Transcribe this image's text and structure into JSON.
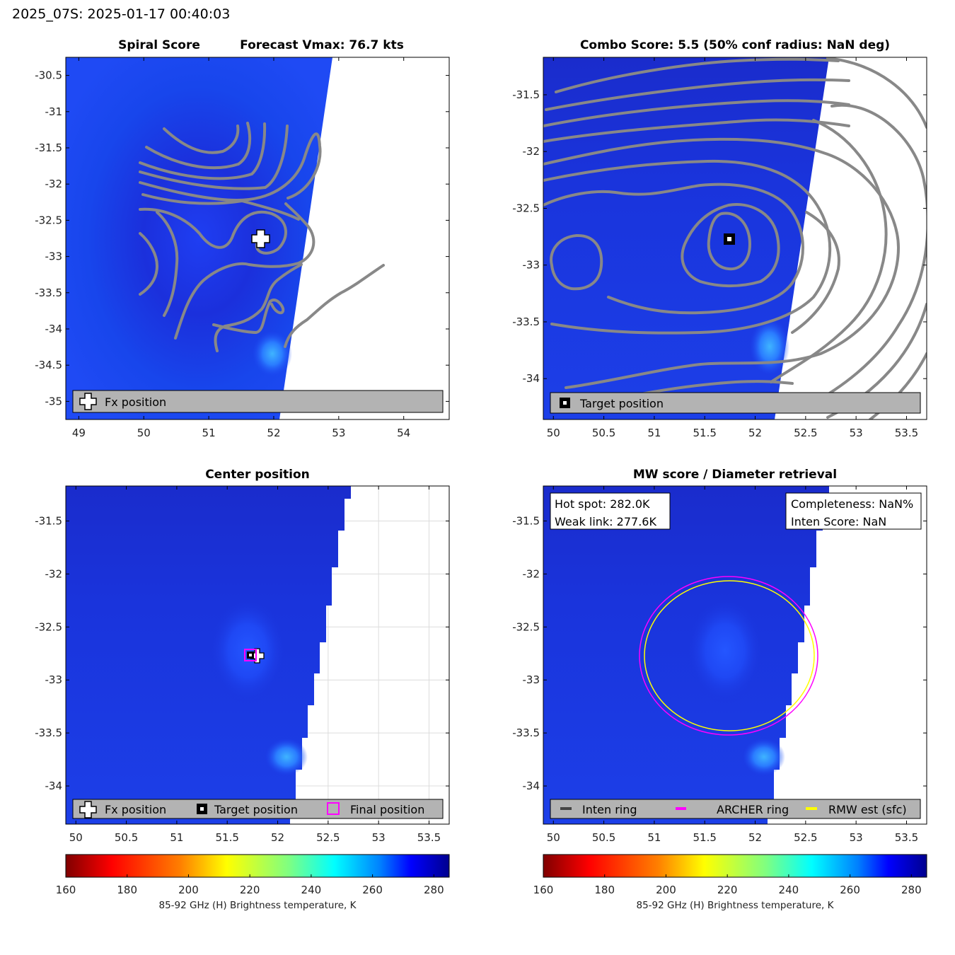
{
  "header": {
    "title": "2025_07S: 2025-01-17 00:40:03"
  },
  "colors": {
    "contour": "#888888",
    "archer_ring": "#ff00ff",
    "rmw_ring": "#ffff00",
    "legend_bg": "#b3b3b3",
    "tb_field": "#1a3cf0"
  },
  "panels": {
    "spiral": {
      "title_left": "Spiral Score",
      "title_right": "Forecast Vmax: 76.7 kts",
      "legend": [
        "Fx position"
      ]
    },
    "combo": {
      "title": "Combo Score: 5.5  (50% conf radius: NaN deg)",
      "legend": [
        "Target position"
      ]
    },
    "center": {
      "title": "Center position",
      "legend": [
        "Fx position",
        "Target position",
        "Final position"
      ]
    },
    "mw": {
      "title": "MW score / Diameter retrieval",
      "info_left": [
        "Hot spot: 282.0K",
        "Weak link: 277.6K"
      ],
      "info_right": [
        "Completeness: NaN%",
        "Inten Score: NaN"
      ],
      "legend": [
        "Inten ring",
        "ARCHER ring",
        "RMW est (sfc)"
      ]
    }
  },
  "colorbar": {
    "label": "85-92 GHz (H) Brightness temperature, K",
    "ticks": [
      "160",
      "180",
      "200",
      "220",
      "240",
      "260",
      "280"
    ]
  },
  "chart_data": [
    {
      "type": "heatmap",
      "title": "Spiral Score",
      "xlim": [
        48.8,
        54.7
      ],
      "ylim": [
        -35.25,
        -30.25
      ],
      "xticks": [
        49,
        50,
        51,
        52,
        53,
        54
      ],
      "xtick_labels": [
        "49",
        "50",
        "51",
        "52",
        "53",
        "54"
      ],
      "yticks": [
        -30.5,
        -31,
        -31.5,
        -32,
        -32.5,
        -33,
        -33.5,
        -34,
        -34.5,
        -35
      ],
      "ytick_labels": [
        "-30.5",
        "-31",
        "-31.5",
        "-32",
        "-32.5",
        "-33",
        "-33.5",
        "-34",
        "-34.5",
        "-35"
      ],
      "fx_position": [
        51.8,
        -32.77
      ],
      "forecast_vmax_kts": 76.7
    },
    {
      "type": "heatmap",
      "title": "Combo Score: 5.5  (50% conf radius: NaN deg)",
      "xlim": [
        49.9,
        53.7
      ],
      "ylim": [
        -34.36,
        -31.17
      ],
      "xticks": [
        50,
        50.5,
        51,
        51.5,
        52,
        52.5,
        53,
        53.5
      ],
      "xtick_labels": [
        "50",
        "50.5",
        "51",
        "51.5",
        "52",
        "52.5",
        "53",
        "53.5"
      ],
      "yticks": [
        -31.5,
        -32,
        -32.5,
        -33,
        -33.5,
        -34
      ],
      "ytick_labels": [
        "-31.5",
        "-32",
        "-32.5",
        "-33",
        "-33.5",
        "-34"
      ],
      "target_position": [
        51.75,
        -32.77
      ],
      "combo_score": 5.5
    },
    {
      "type": "heatmap",
      "title": "Center position",
      "xlim": [
        49.9,
        53.7
      ],
      "ylim": [
        -34.36,
        -31.17
      ],
      "xticks": [
        50,
        50.5,
        51,
        51.5,
        52,
        52.5,
        53,
        53.5
      ],
      "xtick_labels": [
        "50",
        "50.5",
        "51",
        "51.5",
        "52",
        "52.5",
        "53",
        "53.5"
      ],
      "yticks": [
        -31.5,
        -32,
        -32.5,
        -33,
        -33.5,
        -34
      ],
      "ytick_labels": [
        "-31.5",
        "-32",
        "-32.5",
        "-33",
        "-33.5",
        "-34"
      ],
      "fx_position": [
        51.8,
        -32.77
      ],
      "target_position": [
        51.75,
        -32.77
      ],
      "final_position": [
        51.75,
        -32.77
      ]
    },
    {
      "type": "heatmap",
      "title": "MW score / Diameter retrieval",
      "xlim": [
        49.9,
        53.7
      ],
      "ylim": [
        -34.36,
        -31.17
      ],
      "xticks": [
        50,
        50.5,
        51,
        51.5,
        52,
        52.5,
        53,
        53.5
      ],
      "xtick_labels": [
        "50",
        "50.5",
        "51",
        "51.5",
        "52",
        "52.5",
        "53",
        "53.5"
      ],
      "yticks": [
        -31.5,
        -32,
        -32.5,
        -33,
        -33.5,
        -34
      ],
      "ytick_labels": [
        "-31.5",
        "-32",
        "-32.5",
        "-33",
        "-33.5",
        "-34"
      ],
      "archer_ring": {
        "center": [
          51.75,
          -32.77
        ],
        "radius_lon": 0.88,
        "radius_lat": 0.75
      },
      "rmw_ring": {
        "center": [
          51.75,
          -32.77
        ],
        "radius_lon": 0.84,
        "radius_lat": 0.71
      },
      "hot_spot_K": 282.0,
      "weak_link_K": 277.6
    }
  ]
}
